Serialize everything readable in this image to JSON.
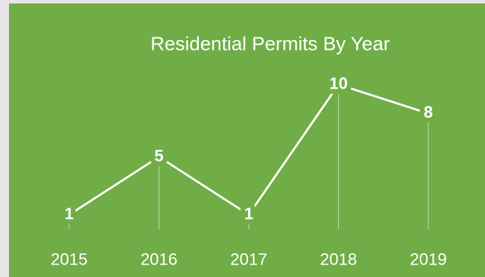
{
  "chart_data": {
    "type": "line",
    "title": "Residential Permits By Year",
    "categories": [
      "2015",
      "2016",
      "2017",
      "2018",
      "2019"
    ],
    "values": [
      1,
      5,
      1,
      10,
      8
    ],
    "color": "#ffffff",
    "background": "#70ad47",
    "ylim": [
      0,
      10
    ]
  }
}
